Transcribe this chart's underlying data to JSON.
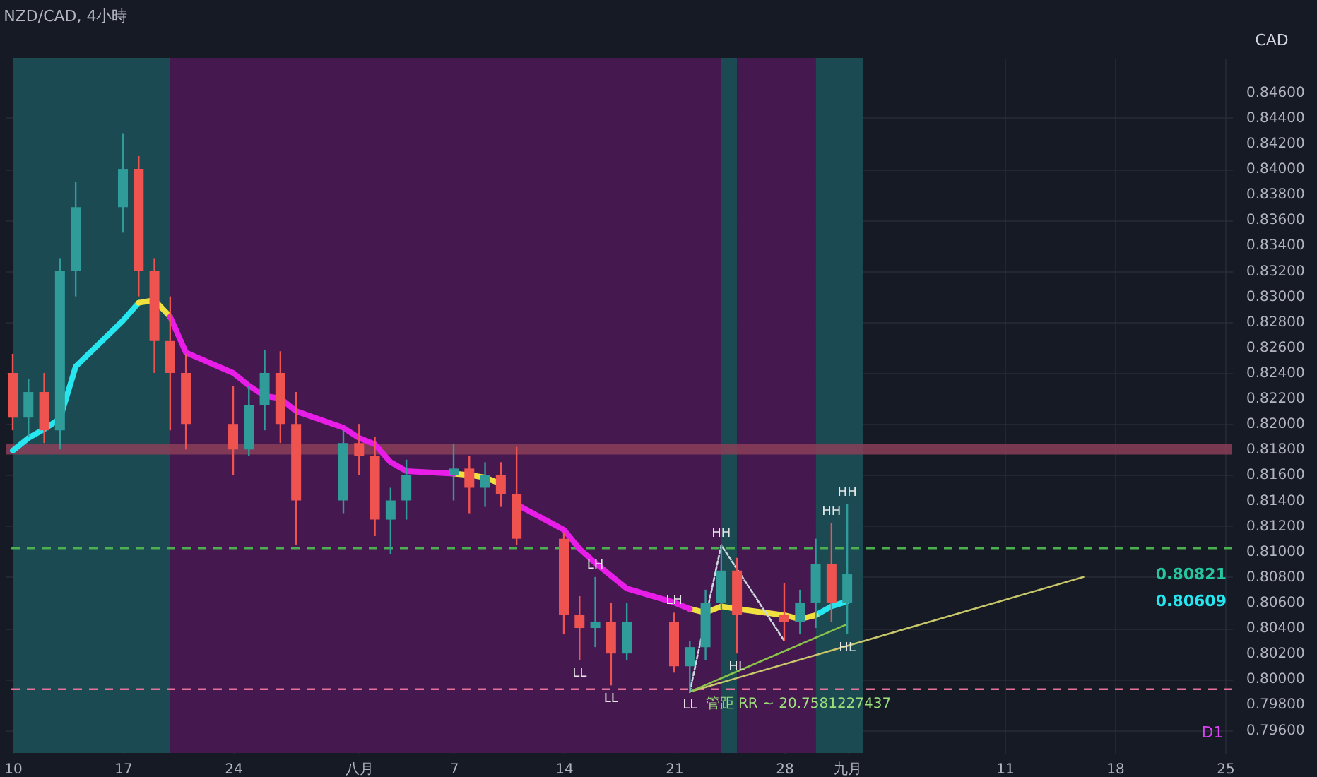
{
  "chart_data": {
    "type": "candlestick",
    "title": "NZD/CAD, 4小時",
    "x": [
      "--07-10",
      "--07-11",
      "--07-12",
      "--07-13",
      "--07-14",
      "--07-17",
      "--07-18",
      "--07-19",
      "--07-20",
      "--07-21",
      "--07-24",
      "--07-25",
      "--07-26",
      "--07-27",
      "--07-28",
      "--07-31",
      "--08-01",
      "--08-02",
      "--08-03",
      "--08-04",
      "--08-07",
      "--08-08",
      "--08-09",
      "--08-10",
      "--08-11",
      "--08-14",
      "--08-15",
      "--08-16",
      "--08-17",
      "--08-18",
      "--08-21",
      "--08-22",
      "--08-23",
      "--08-24",
      "--08-25",
      "--08-28",
      "--08-29",
      "--08-30",
      "--08-31",
      "--09-01"
    ],
    "ohlc": [
      [
        0.824,
        0.8255,
        0.8195,
        0.8205
      ],
      [
        0.8205,
        0.8235,
        0.819,
        0.8225
      ],
      [
        0.8225,
        0.824,
        0.8185,
        0.8195
      ],
      [
        0.8195,
        0.833,
        0.818,
        0.832
      ],
      [
        0.832,
        0.839,
        0.83,
        0.837
      ],
      [
        0.837,
        0.8428,
        0.835,
        0.84
      ],
      [
        0.84,
        0.841,
        0.83,
        0.832
      ],
      [
        0.832,
        0.833,
        0.824,
        0.8265
      ],
      [
        0.8265,
        0.83,
        0.8195,
        0.824
      ],
      [
        0.824,
        0.8255,
        0.818,
        0.82
      ],
      [
        0.82,
        0.823,
        0.816,
        0.818
      ],
      [
        0.818,
        0.823,
        0.8175,
        0.8215
      ],
      [
        0.8215,
        0.8258,
        0.8195,
        0.824
      ],
      [
        0.824,
        0.8257,
        0.8185,
        0.82
      ],
      [
        0.82,
        0.8225,
        0.8105,
        0.814
      ],
      [
        0.814,
        0.8195,
        0.813,
        0.8185
      ],
      [
        0.8185,
        0.82,
        0.816,
        0.8175
      ],
      [
        0.8175,
        0.819,
        0.8112,
        0.8125
      ],
      [
        0.8125,
        0.815,
        0.8098,
        0.814
      ],
      [
        0.814,
        0.8172,
        0.8125,
        0.816
      ],
      [
        0.816,
        0.8184,
        0.814,
        0.8165
      ],
      [
        0.8165,
        0.8175,
        0.813,
        0.815
      ],
      [
        0.815,
        0.817,
        0.8135,
        0.816
      ],
      [
        0.816,
        0.817,
        0.8135,
        0.8145
      ],
      [
        0.8145,
        0.8182,
        0.8105,
        0.811
      ],
      [
        0.811,
        0.8115,
        0.8035,
        0.805
      ],
      [
        0.805,
        0.8065,
        0.8015,
        0.804
      ],
      [
        0.804,
        0.808,
        0.8025,
        0.8045
      ],
      [
        0.8045,
        0.806,
        0.7995,
        0.802
      ],
      [
        0.802,
        0.806,
        0.8015,
        0.8045
      ],
      [
        0.8045,
        0.8052,
        0.8005,
        0.801
      ],
      [
        0.801,
        0.803,
        0.799,
        0.8025
      ],
      [
        0.8025,
        0.807,
        0.8015,
        0.806
      ],
      [
        0.806,
        0.8105,
        0.8055,
        0.8085
      ],
      [
        0.8085,
        0.8095,
        0.802,
        0.805
      ],
      [
        0.805,
        0.8075,
        0.803,
        0.8045
      ],
      [
        0.8045,
        0.807,
        0.8035,
        0.806
      ],
      [
        0.806,
        0.811,
        0.804,
        0.809
      ],
      [
        0.809,
        0.8122,
        0.8045,
        0.806
      ],
      [
        0.806,
        0.8137,
        0.8035,
        0.80821
      ]
    ],
    "series": [
      {
        "type": "line",
        "color": "#26e6f0",
        "values": [
          0.8179,
          0.8189,
          0.8196,
          0.8204,
          0.8245,
          0.8281,
          0.8295,
          null,
          null,
          null,
          null,
          null,
          null,
          null,
          null,
          null,
          null,
          null,
          null,
          null,
          null,
          null,
          null,
          null,
          null,
          null,
          null,
          null,
          null,
          null,
          null,
          null,
          null,
          null,
          null,
          null,
          null,
          0.805,
          0.8057,
          0.80609
        ]
      },
      {
        "type": "line",
        "color": "#f0e040",
        "values": [
          null,
          null,
          null,
          null,
          null,
          null,
          0.8295,
          0.8297,
          0.8284,
          null,
          null,
          null,
          null,
          null,
          null,
          null,
          null,
          null,
          null,
          null,
          0.8161,
          0.816,
          0.8158,
          0.8153,
          null,
          null,
          null,
          null,
          null,
          null,
          null,
          0.8055,
          0.8052,
          0.8057,
          0.8055,
          0.805,
          0.8047,
          0.805,
          null,
          null
        ]
      },
      {
        "type": "line",
        "color": "#e81ee8",
        "values": [
          null,
          null,
          null,
          null,
          null,
          null,
          null,
          null,
          0.8284,
          0.8256,
          0.824,
          0.823,
          0.8222,
          0.822,
          0.821,
          0.8197,
          0.8189,
          0.8184,
          0.817,
          0.8163,
          0.8161,
          null,
          null,
          null,
          0.8137,
          0.8117,
          0.8102,
          0.8091,
          0.8081,
          0.8071,
          0.806,
          0.8055,
          null,
          null,
          null,
          null,
          null,
          null,
          null,
          null
        ]
      },
      {
        "type": "line",
        "color": "#c8c86a",
        "x": [
          "--08-22",
          "--09-16"
        ],
        "values": [
          0.799,
          0.808
        ]
      },
      {
        "type": "line",
        "color": "#8bc34a",
        "x": [
          "--08-22",
          "--09-01"
        ],
        "values": [
          0.799,
          0.8043
        ]
      },
      {
        "type": "line",
        "color": "#cfd8dc",
        "line_style": "dotted",
        "x": [
          "--08-22",
          "--08-24",
          "--08-28"
        ],
        "values": [
          0.799,
          0.8105,
          0.803
        ]
      }
    ],
    "xlim": [
      "--07-10",
      "--09-25"
    ],
    "xticks": [
      {
        "value": "--07-10",
        "label": "10"
      },
      {
        "value": "--07-17",
        "label": "17"
      },
      {
        "value": "--07-24",
        "label": "24"
      },
      {
        "value": "--08-01",
        "label": "八月"
      },
      {
        "value": "--08-07",
        "label": "7"
      },
      {
        "value": "--08-14",
        "label": "14"
      },
      {
        "value": "--08-21",
        "label": "21"
      },
      {
        "value": "--08-28",
        "label": "28"
      },
      {
        "value": "--09-01",
        "label": "九月"
      },
      {
        "value": "--09-11",
        "label": "11"
      },
      {
        "value": "--09-18",
        "label": "18"
      },
      {
        "value": "--09-25",
        "label": "25"
      }
    ],
    "ylim": [
      0.7942,
      0.8487
    ],
    "yticks": [
      {
        "value": 0.796,
        "label": "0.79600"
      },
      {
        "value": 0.798,
        "label": "0.79800"
      },
      {
        "value": 0.8,
        "label": "0.80000"
      },
      {
        "value": 0.802,
        "label": "0.80200"
      },
      {
        "value": 0.804,
        "label": "0.80400"
      },
      {
        "value": 0.806,
        "label": "0.80600"
      },
      {
        "value": 0.808,
        "label": "0.80800"
      },
      {
        "value": 0.81,
        "label": "0.81000"
      },
      {
        "value": 0.812,
        "label": "0.81200"
      },
      {
        "value": 0.814,
        "label": "0.81400"
      },
      {
        "value": 0.816,
        "label": "0.81600"
      },
      {
        "value": 0.818,
        "label": "0.81800"
      },
      {
        "value": 0.82,
        "label": "0.82000"
      },
      {
        "value": 0.822,
        "label": "0.82200"
      },
      {
        "value": 0.824,
        "label": "0.82400"
      },
      {
        "value": 0.826,
        "label": "0.82600"
      },
      {
        "value": 0.828,
        "label": "0.82800"
      },
      {
        "value": 0.83,
        "label": "0.83000"
      },
      {
        "value": 0.832,
        "label": "0.83200"
      },
      {
        "value": 0.834,
        "label": "0.83400"
      },
      {
        "value": 0.836,
        "label": "0.83600"
      },
      {
        "value": 0.838,
        "label": "0.83800"
      },
      {
        "value": 0.84,
        "label": "0.84000"
      },
      {
        "value": 0.842,
        "label": "0.84200"
      },
      {
        "value": 0.844,
        "label": "0.84400"
      },
      {
        "value": 0.846,
        "label": "0.84600"
      }
    ],
    "grid": true,
    "bands": [
      {
        "axis": "x",
        "from": "--07-10",
        "to": "--07-20",
        "color": "#1b4a52"
      },
      {
        "axis": "x",
        "from": "--07-20",
        "to": "--08-24",
        "color": "#45184f"
      },
      {
        "axis": "x",
        "from": "--08-24",
        "to": "--08-25",
        "color": "#1b4a52"
      },
      {
        "axis": "x",
        "from": "--08-25",
        "to": "--08-30",
        "color": "#45184f"
      },
      {
        "axis": "x",
        "from": "--08-30",
        "to": "--09-02",
        "color": "#1b4a52"
      },
      {
        "axis": "y",
        "from": 0.8176,
        "to": 0.8184,
        "color": "#8a4058"
      }
    ],
    "ref_lines": [
      {
        "axis": "y",
        "value": 0.81025,
        "color": "#4caf50",
        "line_style": "dashed"
      },
      {
        "axis": "y",
        "value": 0.7992,
        "color": "#e57399",
        "line_style": "dashed"
      }
    ],
    "annotations": [
      "CAD",
      "D1",
      "0.80821",
      "0.80609",
      {
        "text": "LL",
        "x": "--08-15",
        "y": 0.8015
      },
      {
        "text": "LL",
        "x": "--08-17",
        "y": 0.7995
      },
      {
        "text": "LL",
        "x": "--08-22",
        "y": 0.799
      },
      {
        "text": "HL",
        "x": "--08-25",
        "y": 0.802
      },
      {
        "text": "HL",
        "x": "--09-01",
        "y": 0.8035
      },
      {
        "text": "LH",
        "x": "--08-16",
        "y": 0.808
      },
      {
        "text": "LH",
        "x": "--08-21",
        "y": 0.8052
      },
      {
        "text": "HH",
        "x": "--08-24",
        "y": 0.8105
      },
      {
        "text": "HH",
        "x": "--08-31",
        "y": 0.8122
      },
      {
        "text": "HH",
        "x": "--09-01",
        "y": 0.8137
      },
      {
        "text": "管距 RR ~ 20.7581227437",
        "x": "--08-23",
        "y": 0.7992
      }
    ]
  }
}
